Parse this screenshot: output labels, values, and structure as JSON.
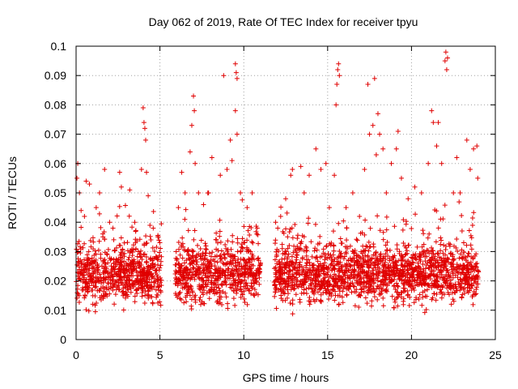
{
  "chart_data": {
    "type": "scatter",
    "title": "Day 062 of 2019, Rate Of TEC Index for receiver tpyu",
    "xlabel": "GPS time / hours",
    "ylabel": "ROTI / TECUs",
    "xlim": [
      0,
      25
    ],
    "ylim": [
      0,
      0.1
    ],
    "xticks": [
      0,
      5,
      10,
      15,
      20,
      25
    ],
    "xtick_labels": [
      "0",
      "5",
      "10",
      "15",
      "20",
      "25"
    ],
    "yticks": [
      0,
      0.01,
      0.02,
      0.03,
      0.04,
      0.05,
      0.06,
      0.07,
      0.08,
      0.09,
      0.1
    ],
    "ytick_labels": [
      "0",
      "0.01",
      "0.02",
      "0.03",
      "0.04",
      "0.05",
      "0.06",
      "0.07",
      "0.08",
      "0.09",
      "0.1"
    ],
    "grid": true,
    "marker": "+",
    "series_color": "#e00000",
    "data_gaps_hours": [
      [
        5.1,
        5.9
      ],
      [
        11.0,
        11.8
      ]
    ],
    "series": [
      {
        "name": "ROTI",
        "points": [
          [
            0.05,
            0.055
          ],
          [
            0.1,
            0.06
          ],
          [
            0.2,
            0.05
          ],
          [
            0.3,
            0.044
          ],
          [
            0.5,
            0.042
          ],
          [
            0.6,
            0.054
          ],
          [
            0.8,
            0.053
          ],
          [
            1.2,
            0.045
          ],
          [
            1.4,
            0.05
          ],
          [
            1.6,
            0.035
          ],
          [
            1.7,
            0.058
          ],
          [
            2.0,
            0.04
          ],
          [
            2.2,
            0.038
          ],
          [
            2.6,
            0.057
          ],
          [
            2.7,
            0.052
          ],
          [
            3.2,
            0.051
          ],
          [
            3.5,
            0.04
          ],
          [
            3.9,
            0.058
          ],
          [
            4.0,
            0.079
          ],
          [
            4.05,
            0.074
          ],
          [
            4.1,
            0.072
          ],
          [
            4.15,
            0.068
          ],
          [
            4.2,
            0.057
          ],
          [
            4.3,
            0.049
          ],
          [
            4.6,
            0.038
          ],
          [
            4.9,
            0.035
          ],
          [
            6.1,
            0.045
          ],
          [
            6.3,
            0.057
          ],
          [
            6.5,
            0.05
          ],
          [
            6.8,
            0.064
          ],
          [
            6.9,
            0.073
          ],
          [
            7.0,
            0.083
          ],
          [
            7.05,
            0.078
          ],
          [
            7.1,
            0.06
          ],
          [
            7.3,
            0.05
          ],
          [
            7.6,
            0.046
          ],
          [
            7.9,
            0.05
          ],
          [
            8.1,
            0.062
          ],
          [
            8.6,
            0.056
          ],
          [
            8.8,
            0.09
          ],
          [
            9.0,
            0.058
          ],
          [
            9.2,
            0.068
          ],
          [
            9.3,
            0.061
          ],
          [
            9.5,
            0.094
          ],
          [
            9.55,
            0.091
          ],
          [
            9.6,
            0.089
          ],
          [
            9.5,
            0.078
          ],
          [
            9.6,
            0.07
          ],
          [
            9.8,
            0.05
          ],
          [
            10.2,
            0.045
          ],
          [
            10.5,
            0.05
          ],
          [
            10.8,
            0.038
          ],
          [
            11.9,
            0.04
          ],
          [
            12.2,
            0.042
          ],
          [
            12.5,
            0.048
          ],
          [
            12.8,
            0.056
          ],
          [
            12.9,
            0.058
          ],
          [
            13.4,
            0.059
          ],
          [
            13.6,
            0.05
          ],
          [
            13.9,
            0.056
          ],
          [
            14.3,
            0.065
          ],
          [
            14.6,
            0.058
          ],
          [
            14.9,
            0.06
          ],
          [
            15.1,
            0.045
          ],
          [
            15.4,
            0.056
          ],
          [
            15.5,
            0.08
          ],
          [
            15.55,
            0.087
          ],
          [
            15.6,
            0.092
          ],
          [
            15.65,
            0.094
          ],
          [
            15.7,
            0.09
          ],
          [
            16.1,
            0.045
          ],
          [
            16.5,
            0.05
          ],
          [
            16.9,
            0.042
          ],
          [
            17.2,
            0.058
          ],
          [
            17.4,
            0.087
          ],
          [
            17.5,
            0.07
          ],
          [
            17.7,
            0.073
          ],
          [
            17.8,
            0.089
          ],
          [
            17.9,
            0.063
          ],
          [
            18.0,
            0.077
          ],
          [
            18.1,
            0.07
          ],
          [
            18.3,
            0.065
          ],
          [
            18.5,
            0.05
          ],
          [
            18.8,
            0.06
          ],
          [
            19.1,
            0.065
          ],
          [
            19.2,
            0.071
          ],
          [
            19.4,
            0.055
          ],
          [
            19.8,
            0.048
          ],
          [
            20.2,
            0.052
          ],
          [
            20.6,
            0.05
          ],
          [
            21.0,
            0.06
          ],
          [
            21.2,
            0.078
          ],
          [
            21.3,
            0.074
          ],
          [
            21.5,
            0.066
          ],
          [
            21.6,
            0.074
          ],
          [
            21.8,
            0.06
          ],
          [
            22.0,
            0.095
          ],
          [
            22.05,
            0.098
          ],
          [
            22.1,
            0.092
          ],
          [
            22.15,
            0.096
          ],
          [
            22.5,
            0.05
          ],
          [
            22.7,
            0.062
          ],
          [
            22.9,
            0.05
          ],
          [
            23.3,
            0.068
          ],
          [
            23.5,
            0.058
          ],
          [
            23.7,
            0.065
          ],
          [
            23.9,
            0.066
          ],
          [
            23.95,
            0.055
          ]
        ]
      }
    ]
  }
}
